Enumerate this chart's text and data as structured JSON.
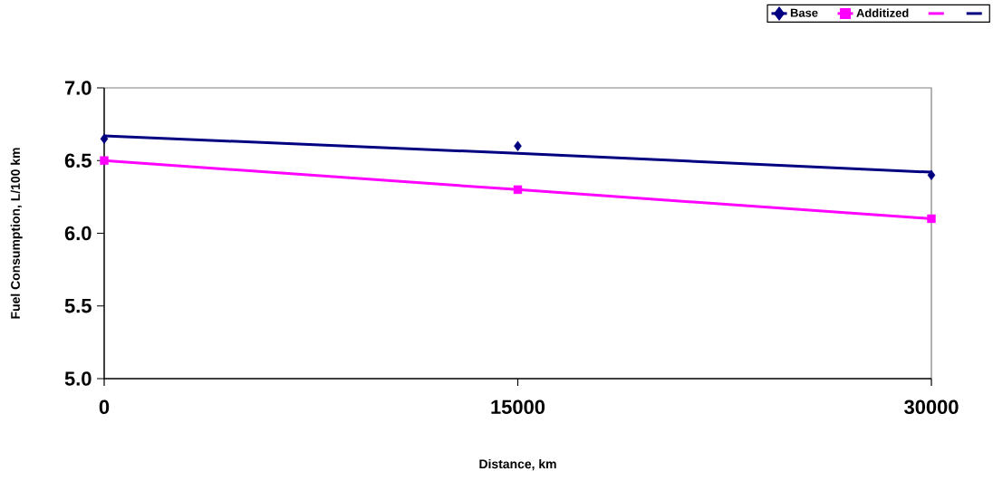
{
  "chart_data": {
    "type": "scatter",
    "xlabel": "Distance, km",
    "ylabel": "Fuel Consumption, L/100 km",
    "x": [
      0,
      15000,
      30000
    ],
    "series": [
      {
        "name": "Base",
        "color": "#000080",
        "marker": "diamond",
        "values": [
          6.65,
          6.6,
          6.4
        ]
      },
      {
        "name": "Additized",
        "color": "#ff00ff",
        "marker": "square",
        "values": [
          6.5,
          6.3,
          6.1
        ]
      },
      {
        "type": "line",
        "color": "#ff00ff",
        "marker": "none",
        "values": [
          6.5,
          6.3,
          6.1
        ]
      },
      {
        "type": "line",
        "color": "#000080",
        "marker": "none",
        "values": [
          6.67,
          6.55,
          6.42
        ]
      }
    ],
    "xlim": [
      0,
      30000
    ],
    "ylim": [
      5.0,
      7.0
    ],
    "xticks": [
      0,
      15000,
      30000
    ],
    "yticks": [
      {
        "value": 5.0,
        "label": "5.0"
      },
      {
        "value": 5.5,
        "label": "5.5"
      },
      {
        "value": 6.0,
        "label": "6.0"
      },
      {
        "value": 6.5,
        "label": "6.5"
      },
      {
        "value": 7.0,
        "label": "7.0"
      }
    ],
    "grid": false,
    "legend": "top right"
  }
}
